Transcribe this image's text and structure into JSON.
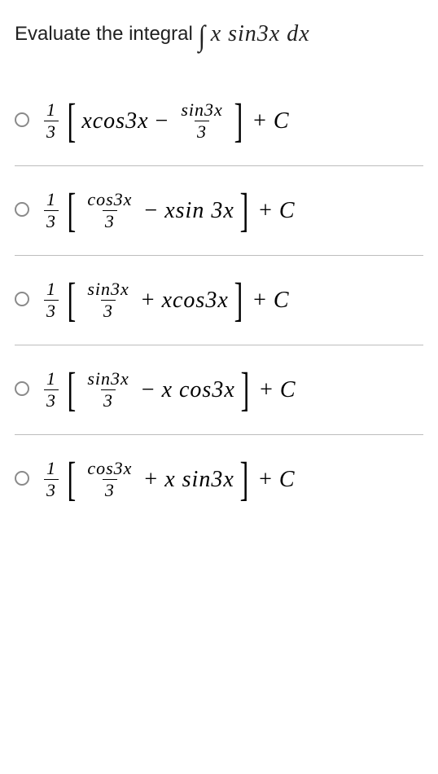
{
  "question": {
    "prefix_text": "Evaluate the integral ",
    "integral_sym": "∫",
    "integrand": "x sin3x dx"
  },
  "frac_one_third": {
    "num": "1",
    "den": "3"
  },
  "plusC": "+ C",
  "choices": [
    {
      "parts": {
        "lead_frac": {
          "num": "1",
          "den": "3"
        },
        "term1": "xcos3x",
        "op": "−",
        "term2_frac": {
          "num": "sin3x",
          "den": "3"
        }
      }
    },
    {
      "parts": {
        "lead_frac": {
          "num": "1",
          "den": "3"
        },
        "term1_frac": {
          "num": "cos3x",
          "den": "3"
        },
        "op": "−",
        "term2": "xsin 3x"
      }
    },
    {
      "parts": {
        "lead_frac": {
          "num": "1",
          "den": "3"
        },
        "term1_frac": {
          "num": "sin3x",
          "den": "3"
        },
        "op": "+",
        "term2": "xcos3x"
      }
    },
    {
      "parts": {
        "lead_frac": {
          "num": "1",
          "den": "3"
        },
        "term1_frac": {
          "num": "sin3x",
          "den": "3"
        },
        "op": "−",
        "term2": "x cos3x"
      }
    },
    {
      "parts": {
        "lead_frac": {
          "num": "1",
          "den": "3"
        },
        "term1_frac": {
          "num": "cos3x",
          "den": "3"
        },
        "op": "+",
        "term2": "x sin3x"
      }
    }
  ],
  "style": {
    "text_color": "#212121",
    "divider_color": "#bdbdbd",
    "radio_border": "#8a8a8a",
    "background": "#ffffff"
  }
}
